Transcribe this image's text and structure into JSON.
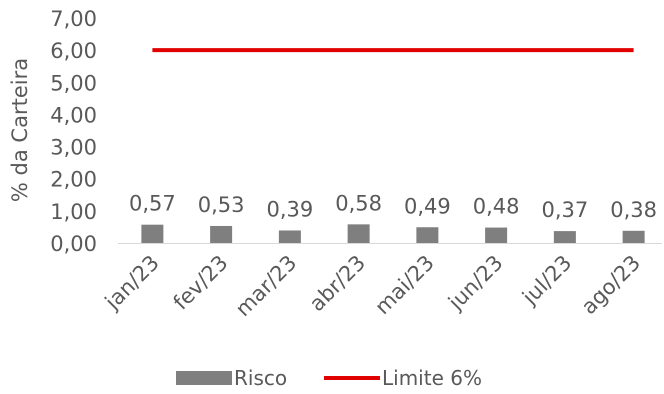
{
  "chart_data": {
    "type": "bar",
    "categories": [
      "jan/23",
      "fev/23",
      "mar/23",
      "abr/23",
      "mai/23",
      "jun/23",
      "jul/23",
      "ago/23"
    ],
    "series": [
      {
        "name": "Risco",
        "kind": "bar",
        "values": [
          0.57,
          0.53,
          0.39,
          0.58,
          0.49,
          0.48,
          0.37,
          0.38
        ],
        "labels": [
          "0,57",
          "0,53",
          "0,39",
          "0,58",
          "0,49",
          "0,48",
          "0,37",
          "0,38"
        ]
      },
      {
        "name": "Limite 6%",
        "kind": "line",
        "values": [
          6,
          6,
          6,
          6,
          6,
          6,
          6,
          6
        ]
      }
    ],
    "ylabel": "% da Carteira",
    "ylim": [
      0,
      7
    ],
    "yticks": [
      0,
      1,
      2,
      3,
      4,
      5,
      6,
      7
    ],
    "ytick_labels": [
      "0,00",
      "1,00",
      "2,00",
      "3,00",
      "4,00",
      "5,00",
      "6,00",
      "7,00"
    ],
    "grid": false,
    "legend": "bottom",
    "colors": {
      "bar": "#7f7f7f",
      "line": "#e00000",
      "text": "#595959"
    }
  },
  "legend": {
    "bar_label": "Risco",
    "line_label": "Limite 6%"
  }
}
